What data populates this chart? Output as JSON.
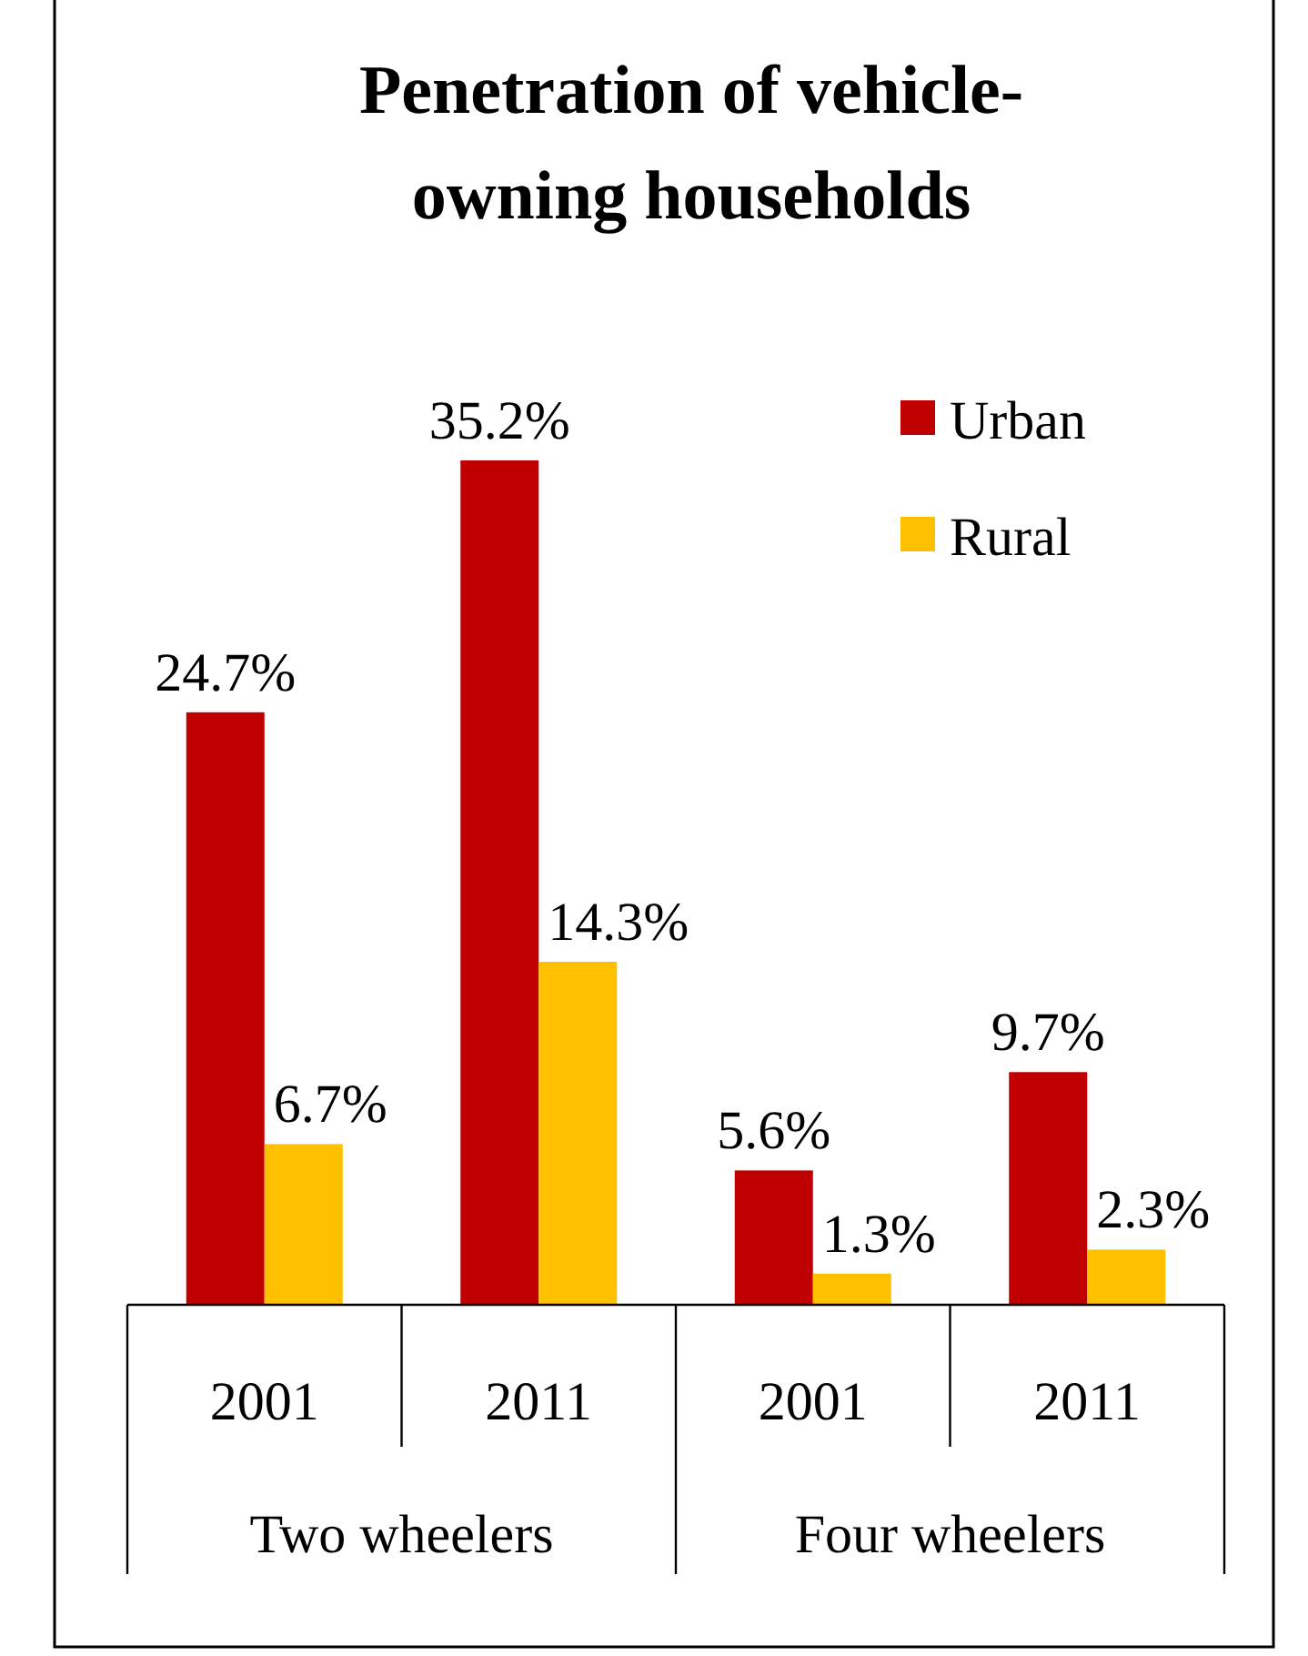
{
  "chart_data": {
    "type": "bar",
    "title": "Penetration of vehicle-owning households",
    "categories": [
      "2001",
      "2011",
      "2001",
      "2011"
    ],
    "series": [
      {
        "name": "Urban",
        "color": "#c00000",
        "values": [
          24.7,
          35.2,
          5.6,
          9.7
        ],
        "value_labels": [
          "24.7%",
          "35.2%",
          "5.6%",
          "9.7%"
        ]
      },
      {
        "name": "Rural",
        "color": "#ffc000",
        "values": [
          6.7,
          14.3,
          1.3,
          2.3
        ],
        "value_labels": [
          "6.7%",
          "14.3%",
          "1.3%",
          "2.3%"
        ]
      }
    ],
    "annotations": [
      "Two wheelers",
      "Four wheelers"
    ],
    "legend": "top right"
  }
}
